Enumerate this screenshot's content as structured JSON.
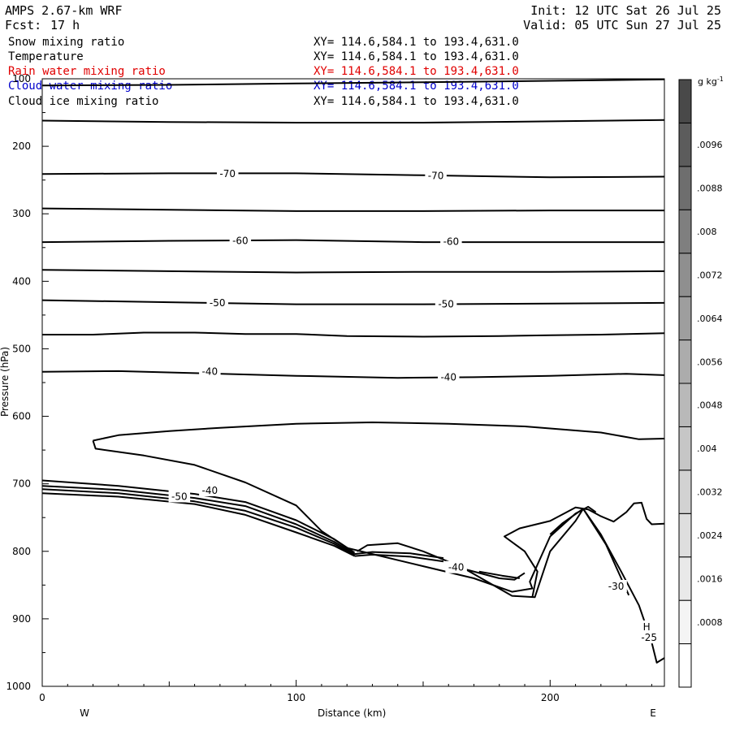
{
  "header": {
    "model": "AMPS 2.67-km WRF",
    "fcst_label": "Fcst:",
    "fcst_value": "17 h",
    "init": "Init: 12 UTC Sat 26 Jul 25",
    "valid": "Valid: 05 UTC Sun 27 Jul 25"
  },
  "fields": [
    {
      "name": "Snow mixing ratio",
      "xy": "XY= 114.6,584.1 to 193.4,631.0",
      "color": "#000000"
    },
    {
      "name": "Temperature",
      "xy": "XY= 114.6,584.1 to 193.4,631.0",
      "color": "#000000"
    },
    {
      "name": "Rain water mixing ratio",
      "xy": "XY= 114.6,584.1 to 193.4,631.0",
      "color": "#e00000"
    },
    {
      "name": "Cloud water mixing ratio",
      "xy": "XY= 114.6,584.1 to 193.4,631.0",
      "color": "#0000cc"
    },
    {
      "name": "Cloud ice mixing ratio",
      "xy": "XY= 114.6,584.1 to 193.4,631.0",
      "color": "#000000"
    }
  ],
  "chart_data": {
    "type": "line",
    "xlabel": "Distance (km)",
    "ylabel": "Pressure (hPa)",
    "xlim": [
      0,
      245
    ],
    "ylim": [
      1000,
      100
    ],
    "x_ticks": [
      0,
      100,
      200
    ],
    "y_ticks": [
      100,
      200,
      300,
      400,
      500,
      600,
      700,
      800,
      900,
      1000
    ],
    "left_end_label": "W",
    "right_end_label": "E",
    "colorbar": {
      "unit": "g kg",
      "unit_exp": "-1",
      "labels": [
        ".0008",
        ".0016",
        ".0024",
        ".0032",
        ".004",
        ".0048",
        ".0056",
        ".0064",
        ".0072",
        ".008",
        ".0088",
        ".0096"
      ],
      "colors": [
        "#ffffff",
        "#f4f4f4",
        "#e9e9e9",
        "#dedede",
        "#d2d2d2",
        "#c6c6c6",
        "#b9b9b9",
        "#acacac",
        "#9e9e9e",
        "#8f8f8f",
        "#7f7f7f",
        "#6e6e6e",
        "#5c5c5c",
        "#494949"
      ]
    },
    "series": [
      {
        "points": [
          [
            0,
            110
          ],
          [
            50,
            109
          ],
          [
            100,
            107
          ],
          [
            150,
            105
          ],
          [
            200,
            103
          ],
          [
            245,
            101
          ]
        ]
      },
      {
        "points": [
          [
            0,
            162
          ],
          [
            50,
            164
          ],
          [
            100,
            165
          ],
          [
            150,
            165
          ],
          [
            200,
            163
          ],
          [
            245,
            161
          ]
        ]
      },
      {
        "points": [
          [
            0,
            241
          ],
          [
            50,
            240
          ],
          [
            100,
            240
          ],
          [
            150,
            243
          ],
          [
            200,
            246
          ],
          [
            245,
            245
          ]
        ]
      },
      {
        "points": [
          [
            0,
            292
          ],
          [
            50,
            294
          ],
          [
            100,
            296
          ],
          [
            150,
            296
          ],
          [
            200,
            295
          ],
          [
            245,
            295
          ]
        ]
      },
      {
        "points": [
          [
            0,
            342
          ],
          [
            50,
            340
          ],
          [
            100,
            339
          ],
          [
            150,
            342
          ],
          [
            200,
            342
          ],
          [
            245,
            342
          ]
        ]
      },
      {
        "points": [
          [
            0,
            383
          ],
          [
            50,
            385
          ],
          [
            100,
            387
          ],
          [
            150,
            386
          ],
          [
            200,
            386
          ],
          [
            245,
            385
          ]
        ]
      },
      {
        "points": [
          [
            0,
            428
          ],
          [
            50,
            431
          ],
          [
            100,
            434
          ],
          [
            150,
            434
          ],
          [
            200,
            433
          ],
          [
            245,
            432
          ]
        ]
      },
      {
        "points": [
          [
            0,
            479
          ],
          [
            20,
            479
          ],
          [
            40,
            476
          ],
          [
            60,
            476
          ],
          [
            80,
            478
          ],
          [
            100,
            478
          ],
          [
            120,
            481
          ],
          [
            150,
            482
          ],
          [
            180,
            481
          ],
          [
            200,
            480
          ],
          [
            220,
            479
          ],
          [
            245,
            477
          ]
        ]
      },
      {
        "points": [
          [
            0,
            534
          ],
          [
            30,
            533
          ],
          [
            60,
            536
          ],
          [
            100,
            540
          ],
          [
            140,
            543
          ],
          [
            170,
            542
          ],
          [
            200,
            540
          ],
          [
            230,
            537
          ],
          [
            245,
            539
          ]
        ]
      },
      {
        "points": [
          [
            20,
            636
          ],
          [
            30,
            628
          ],
          [
            50,
            622
          ],
          [
            70,
            617
          ],
          [
            100,
            611
          ],
          [
            130,
            609
          ],
          [
            160,
            611
          ],
          [
            190,
            615
          ],
          [
            220,
            624
          ],
          [
            235,
            634
          ],
          [
            245,
            633
          ]
        ]
      },
      {
        "points": [
          [
            20,
            636
          ],
          [
            21,
            648
          ],
          [
            40,
            658
          ],
          [
            60,
            672
          ],
          [
            80,
            698
          ],
          [
            100,
            732
          ],
          [
            110,
            770
          ],
          [
            120,
            795
          ],
          [
            150,
            822
          ],
          [
            170,
            840
          ],
          [
            185,
            860
          ],
          [
            193,
            855
          ],
          [
            192,
            845
          ],
          [
            200,
            778
          ],
          [
            210,
            744
          ],
          [
            215,
            734
          ],
          [
            218,
            742
          ]
        ]
      },
      {
        "points": [
          [
            0,
            695
          ],
          [
            30,
            703
          ],
          [
            60,
            715
          ],
          [
            80,
            727
          ],
          [
            100,
            754
          ],
          [
            115,
            782
          ],
          [
            123,
            802
          ]
        ]
      },
      {
        "points": [
          [
            0,
            703
          ],
          [
            30,
            709
          ],
          [
            60,
            721
          ],
          [
            80,
            733
          ],
          [
            100,
            760
          ],
          [
            115,
            786
          ],
          [
            123,
            804
          ]
        ]
      },
      {
        "points": [
          [
            0,
            708
          ],
          [
            30,
            714
          ],
          [
            60,
            726
          ],
          [
            80,
            740
          ],
          [
            100,
            765
          ],
          [
            115,
            789
          ],
          [
            123,
            806
          ]
        ]
      },
      {
        "points": [
          [
            0,
            714
          ],
          [
            30,
            719
          ],
          [
            60,
            730
          ],
          [
            80,
            746
          ],
          [
            100,
            772
          ],
          [
            115,
            792
          ],
          [
            123,
            807
          ]
        ]
      },
      {
        "points": [
          [
            123,
            807
          ],
          [
            130,
            805
          ],
          [
            145,
            808
          ],
          [
            158,
            815
          ]
        ]
      },
      {
        "points": [
          [
            123,
            804
          ],
          [
            130,
            801
          ],
          [
            145,
            803
          ],
          [
            158,
            810
          ]
        ]
      },
      {
        "points": [
          [
            124,
            800
          ],
          [
            128,
            791
          ],
          [
            140,
            788
          ],
          [
            150,
            800
          ],
          [
            165,
            823
          ],
          [
            185,
            866
          ],
          [
            194,
            868
          ],
          [
            200,
            800
          ],
          [
            210,
            755
          ],
          [
            213,
            737
          ]
        ]
      },
      {
        "points": [
          [
            200,
            775
          ],
          [
            205,
            758
          ],
          [
            213,
            737
          ],
          [
            220,
            775
          ],
          [
            228,
            830
          ],
          [
            235,
            880
          ],
          [
            240,
            935
          ],
          [
            242,
            965
          ],
          [
            245,
            958
          ]
        ]
      },
      {
        "points": [
          [
            213,
            737
          ],
          [
            222,
            790
          ],
          [
            231,
            865
          ]
        ]
      },
      {
        "points": [
          [
            162,
            822
          ],
          [
            180,
            840
          ],
          [
            186,
            842
          ],
          [
            190,
            832
          ]
        ]
      },
      {
        "points": [
          [
            172,
            830
          ],
          [
            181,
            836
          ],
          [
            188,
            840
          ]
        ]
      },
      {
        "points": [
          [
            193,
            868
          ],
          [
            195,
            830
          ],
          [
            190,
            800
          ],
          [
            182,
            778
          ],
          [
            188,
            766
          ],
          [
            200,
            755
          ],
          [
            205,
            745
          ],
          [
            210,
            735
          ],
          [
            215,
            738
          ],
          [
            220,
            748
          ],
          [
            225,
            756
          ],
          [
            230,
            742
          ],
          [
            233,
            729
          ],
          [
            236,
            728
          ],
          [
            238,
            752
          ],
          [
            240,
            760
          ],
          [
            245,
            759
          ]
        ]
      }
    ],
    "contour_labels": [
      {
        "text": "-70",
        "x": 73,
        "y": 241
      },
      {
        "text": "-70",
        "x": 155,
        "y": 244
      },
      {
        "text": "-60",
        "x": 78,
        "y": 340
      },
      {
        "text": "-60",
        "x": 161,
        "y": 341
      },
      {
        "text": "-50",
        "x": 69,
        "y": 432
      },
      {
        "text": "-50",
        "x": 159,
        "y": 434
      },
      {
        "text": "-40",
        "x": 66,
        "y": 534
      },
      {
        "text": "-40",
        "x": 160,
        "y": 542
      },
      {
        "text": "-40",
        "x": 66,
        "y": 710
      },
      {
        "text": "-50",
        "x": 54,
        "y": 719
      },
      {
        "text": "-40",
        "x": 163,
        "y": 824
      },
      {
        "text": "-30",
        "x": 226,
        "y": 852
      },
      {
        "text": "H",
        "x": 238,
        "y": 912
      },
      {
        "text": "-25",
        "x": 239,
        "y": 928
      }
    ]
  }
}
